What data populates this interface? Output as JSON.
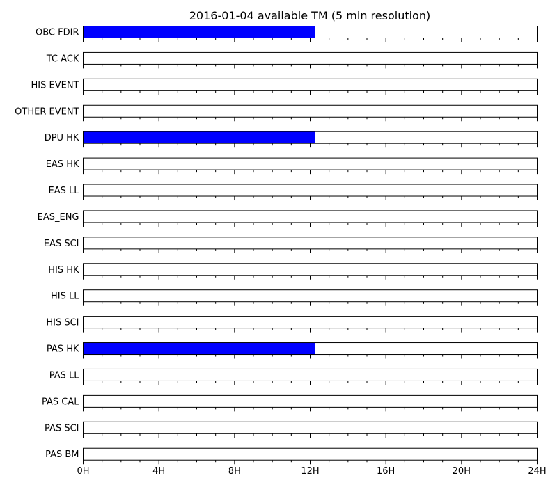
{
  "chart_data": {
    "type": "bar",
    "title": "2016-01-04 available TM (5 min resolution)",
    "xlabel": "",
    "ylabel": "",
    "xlim": [
      0,
      24
    ],
    "x_ticks": [
      0,
      4,
      8,
      12,
      16,
      20,
      24
    ],
    "x_tick_labels": [
      "0H",
      "4H",
      "8H",
      "12H",
      "16H",
      "20H",
      "24H"
    ],
    "x_minor_step": 1,
    "grid": false,
    "legend": "none",
    "colors": {
      "available": "#0000ff",
      "frame": "#000000"
    },
    "series": [
      {
        "name": "OBC FDIR",
        "available_hours": [
          0,
          12.25
        ]
      },
      {
        "name": "TC ACK",
        "available_hours": []
      },
      {
        "name": "HIS EVENT",
        "available_hours": []
      },
      {
        "name": "OTHER EVENT",
        "available_hours": []
      },
      {
        "name": "DPU HK",
        "available_hours": [
          0,
          12.25
        ]
      },
      {
        "name": "EAS HK",
        "available_hours": []
      },
      {
        "name": "EAS LL",
        "available_hours": []
      },
      {
        "name": "EAS_ENG",
        "available_hours": []
      },
      {
        "name": "EAS SCI",
        "available_hours": []
      },
      {
        "name": "HIS HK",
        "available_hours": []
      },
      {
        "name": "HIS LL",
        "available_hours": []
      },
      {
        "name": "HIS SCI",
        "available_hours": []
      },
      {
        "name": "PAS HK",
        "available_hours": [
          0,
          12.25
        ]
      },
      {
        "name": "PAS LL",
        "available_hours": []
      },
      {
        "name": "PAS CAL",
        "available_hours": []
      },
      {
        "name": "PAS SCI",
        "available_hours": []
      },
      {
        "name": "PAS BM",
        "available_hours": []
      }
    ]
  }
}
